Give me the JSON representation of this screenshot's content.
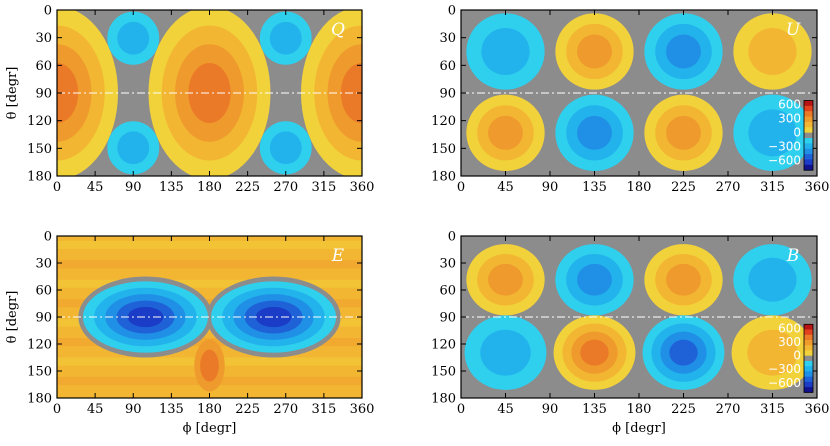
{
  "chart_data": [
    {
      "type": "heatmap",
      "panel_label": "Q",
      "xlabel": "",
      "ylabel": "θ [degr]",
      "xlim": [
        0,
        360
      ],
      "ylim": [
        180,
        0
      ],
      "xticks": [
        "0",
        "45",
        "90",
        "135",
        "180",
        "225",
        "270",
        "315",
        "360"
      ],
      "yticks": [
        "0",
        "30",
        "60",
        "90",
        "120",
        "150",
        "180"
      ],
      "equator_line": 90,
      "colorbar": null
    },
    {
      "type": "heatmap",
      "panel_label": "U",
      "xlabel": "",
      "ylabel": "",
      "xlim": [
        0,
        360
      ],
      "ylim": [
        180,
        0
      ],
      "xticks": [
        "0",
        "45",
        "90",
        "135",
        "180",
        "225",
        "270",
        "315",
        "360"
      ],
      "yticks": [
        "0",
        "30",
        "60",
        "90",
        "120",
        "150",
        "180"
      ],
      "equator_line": 90,
      "colorbar": {
        "ticks": [
          "600",
          "300",
          "0",
          "−300",
          "−600"
        ],
        "range": [
          -600,
          600
        ]
      }
    },
    {
      "type": "heatmap",
      "panel_label": "E",
      "xlabel": "ϕ [degr]",
      "ylabel": "θ [degr]",
      "xlim": [
        0,
        360
      ],
      "ylim": [
        180,
        0
      ],
      "xticks": [
        "0",
        "45",
        "90",
        "135",
        "180",
        "225",
        "270",
        "315",
        "360"
      ],
      "yticks": [
        "0",
        "30",
        "60",
        "90",
        "120",
        "150",
        "180"
      ],
      "equator_line": 90,
      "colorbar": null
    },
    {
      "type": "heatmap",
      "panel_label": "B",
      "xlabel": "ϕ [degr]",
      "ylabel": "",
      "xlim": [
        0,
        360
      ],
      "ylim": [
        180,
        0
      ],
      "xticks": [
        "0",
        "45",
        "90",
        "135",
        "180",
        "225",
        "270",
        "315",
        "360"
      ],
      "yticks": [
        "0",
        "30",
        "60",
        "90",
        "120",
        "150",
        "180"
      ],
      "equator_line": 90,
      "colorbar": {
        "ticks": [
          "600",
          "300",
          "0",
          "−300",
          "−600"
        ],
        "range": [
          -600,
          600
        ]
      }
    }
  ],
  "colors": {
    "zero_band": "#8c8c8c",
    "pos_1": "#f2d23a",
    "pos_2": "#f2b632",
    "pos_3": "#ef9a2c",
    "pos_4": "#eb7a28",
    "pos_5": "#e3421e",
    "pos_6": "#b81414",
    "neg_1": "#2ed0ee",
    "neg_2": "#22b2ec",
    "neg_3": "#2090e6",
    "neg_4": "#1f62d8",
    "neg_5": "#1a3cc6",
    "neg_6": "#10128f"
  }
}
